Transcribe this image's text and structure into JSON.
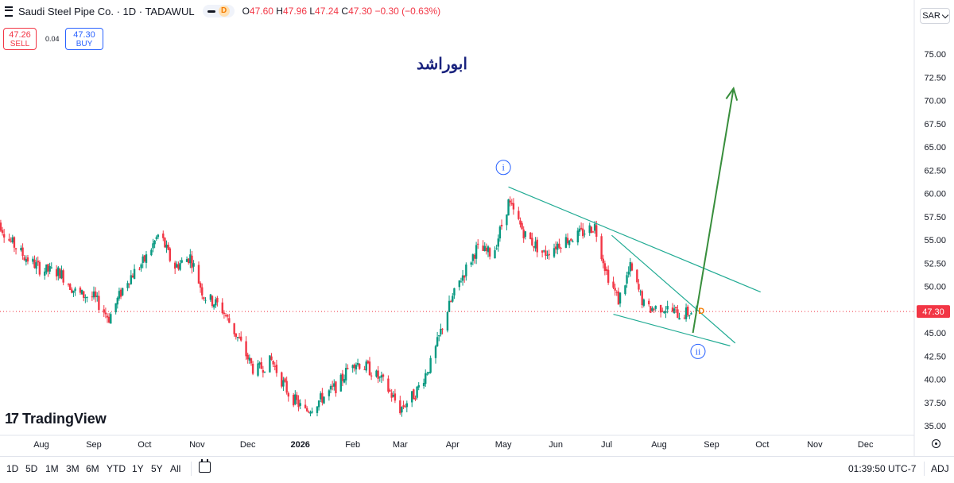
{
  "header": {
    "title": "Saudi Steel Pipe Co. · 1D · TADAWUL",
    "badge": "D",
    "ohlc": {
      "o_label": "O",
      "o": "47.60",
      "h_label": "H",
      "h": "47.96",
      "l_label": "L",
      "l": "47.24",
      "c_label": "C",
      "c": "47.30",
      "change": "−0.30 (−0.63%)"
    },
    "sell_price": "47.26",
    "sell_label": "SELL",
    "spread": "0.04",
    "buy_price": "47.30",
    "buy_label": "BUY",
    "currency": "SAR"
  },
  "annotation_text": "ابوراشد",
  "logo_text": "TradingView",
  "timeframes": [
    "1D",
    "5D",
    "1M",
    "3M",
    "6M",
    "YTD",
    "1Y",
    "5Y",
    "All"
  ],
  "clock": "01:39:50 UTC-7",
  "adj_label": "ADJ",
  "colors": {
    "up": "#089981",
    "down": "#f23645",
    "trendline": "#22ab94",
    "arrow": "#388e3c",
    "wave_label": "#2962ff"
  },
  "chart_data": {
    "type": "candlestick",
    "title": "Saudi Steel Pipe Co. · 1D · TADAWUL",
    "ylim": [
      35,
      76.5
    ],
    "y_ticks": [
      "75.00",
      "72.50",
      "70.00",
      "67.50",
      "65.00",
      "62.50",
      "60.00",
      "57.50",
      "55.00",
      "52.50",
      "50.00",
      "47.50",
      "45.00",
      "42.50",
      "40.00",
      "37.50",
      "35.00"
    ],
    "x_labels": [
      {
        "label": "Aug",
        "x": "2025-08-01"
      },
      {
        "label": "Sep",
        "x": "2025-09-01"
      },
      {
        "label": "Oct",
        "x": "2025-10-01"
      },
      {
        "label": "Nov",
        "x": "2025-11-01"
      },
      {
        "label": "Dec",
        "x": "2025-12-01"
      },
      {
        "label": "2026",
        "x": "2026-01-01"
      },
      {
        "label": "Feb",
        "x": "2026-02-01"
      },
      {
        "label": "Mar",
        "x": "2026-03-01"
      },
      {
        "label": "Apr",
        "x": "2026-04-01"
      },
      {
        "label": "May",
        "x": "2026-05-01"
      },
      {
        "label": "Jun",
        "x": "2026-06-01"
      },
      {
        "label": "Jul",
        "x": "2026-07-01"
      },
      {
        "label": "Aug",
        "x": "2026-08-01"
      },
      {
        "label": "Sep",
        "x": "2026-09-01"
      },
      {
        "label": "Oct",
        "x": "2026-10-01"
      },
      {
        "label": "Nov",
        "x": "2026-11-01"
      },
      {
        "label": "Dec",
        "x": "2026-12-01"
      }
    ],
    "last_price": 47.3,
    "last_price_label": "47.30",
    "price_path": [
      [
        "2025-07-03",
        58.3
      ],
      [
        "2025-07-12",
        55.2
      ],
      [
        "2025-07-22",
        53.2
      ],
      [
        "2025-08-01",
        51.8
      ],
      [
        "2025-08-12",
        51.5
      ],
      [
        "2025-08-22",
        49.2
      ],
      [
        "2025-09-01",
        48.8
      ],
      [
        "2025-09-10",
        46.6
      ],
      [
        "2025-09-20",
        50.5
      ],
      [
        "2025-10-01",
        52.8
      ],
      [
        "2025-10-10",
        55.8
      ],
      [
        "2025-10-18",
        52.0
      ],
      [
        "2025-10-28",
        53.2
      ],
      [
        "2025-11-05",
        49.0
      ],
      [
        "2025-11-15",
        47.8
      ],
      [
        "2025-11-25",
        44.5
      ],
      [
        "2025-12-05",
        40.8
      ],
      [
        "2025-12-15",
        42.0
      ],
      [
        "2025-12-25",
        38.5
      ],
      [
        "2026-01-04",
        36.5
      ],
      [
        "2026-01-14",
        38.0
      ],
      [
        "2026-01-24",
        39.5
      ],
      [
        "2026-02-01",
        42.0
      ],
      [
        "2026-02-10",
        41.2
      ],
      [
        "2026-02-20",
        39.5
      ],
      [
        "2026-03-01",
        36.8
      ],
      [
        "2026-03-10",
        38.5
      ],
      [
        "2026-03-20",
        42.0
      ],
      [
        "2026-03-28",
        47.0
      ],
      [
        "2026-04-05",
        50.5
      ],
      [
        "2026-04-15",
        54.0
      ],
      [
        "2026-04-25",
        53.5
      ],
      [
        "2026-05-04",
        59.0
      ],
      [
        "2026-05-14",
        55.5
      ],
      [
        "2026-05-25",
        53.5
      ],
      [
        "2026-06-04",
        54.8
      ],
      [
        "2026-06-14",
        55.5
      ],
      [
        "2026-06-24",
        56.5
      ],
      [
        "2026-07-01",
        51.5
      ],
      [
        "2026-07-08",
        48.5
      ],
      [
        "2026-07-15",
        52.0
      ],
      [
        "2026-07-24",
        47.5
      ],
      [
        "2026-08-03",
        47.8
      ],
      [
        "2026-08-13",
        47.0
      ],
      [
        "2026-08-23",
        47.3
      ]
    ],
    "annotations": {
      "wave_i": {
        "label": "i",
        "x": "2026-05-01",
        "y": 62.8
      },
      "wave_ii": {
        "label": "ii",
        "x": "2026-08-24",
        "y": 43.0
      },
      "d_marker": {
        "label": "D",
        "x": "2026-08-26",
        "y": 47.4
      },
      "upper_trendline": [
        [
          "2026-05-04",
          60.7
        ],
        [
          "2026-09-30",
          49.4
        ]
      ],
      "wedge_upper": [
        [
          "2026-07-04",
          55.5
        ],
        [
          "2026-09-15",
          43.9
        ]
      ],
      "wedge_lower": [
        [
          "2026-07-05",
          47.0
        ],
        [
          "2026-09-12",
          43.6
        ]
      ],
      "arrow": [
        [
          "2026-08-21",
          45.0
        ],
        [
          "2026-09-14",
          71.3
        ]
      ]
    }
  }
}
